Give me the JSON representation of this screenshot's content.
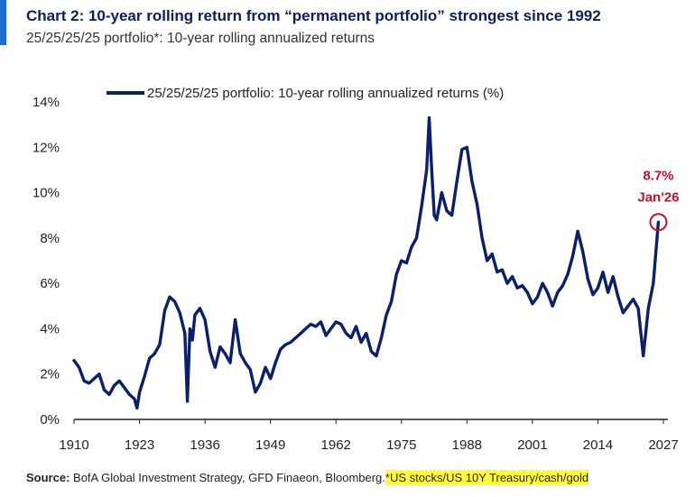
{
  "header": {
    "title": "Chart 2: 10-year rolling return from “permanent portfolio” strongest since 1992",
    "subtitle": "25/25/25/25 portfolio*: 10-year rolling annualized returns"
  },
  "footer": {
    "source_label": "Source:",
    "source_text": "BofA Global Investment Strategy, GFD Finaeon, Bloomberg.",
    "note": "*US stocks/US 10Y Treasury/cash/gold"
  },
  "colors": {
    "series": "#0b1f6b",
    "annotation": "#c8102e",
    "accent": "#1f6bd6",
    "highlight": "#ffff33"
  },
  "chart_data": {
    "type": "line",
    "title": "25/25/25/25 portfolio: 10-year rolling annualized returns",
    "xlabel": "",
    "ylabel": "",
    "xlim": [
      1910,
      2027
    ],
    "ylim": [
      0,
      14
    ],
    "xticks": [
      1910,
      1923,
      1936,
      1949,
      1962,
      1975,
      1988,
      2001,
      2014,
      2027
    ],
    "yticks": [
      0,
      2,
      4,
      6,
      8,
      10,
      12,
      14
    ],
    "ytick_labels": [
      "0%",
      "2%",
      "4%",
      "6%",
      "8%",
      "10%",
      "12%",
      "14%"
    ],
    "grid": false,
    "legend": {
      "position": "top",
      "entries": [
        "25/25/25/25 portfolio: 10-year rolling annualized returns (%)"
      ]
    },
    "annotation": {
      "value_label": "8.7%",
      "date_label": "Jan'26",
      "x": 2026.0,
      "y": 8.7
    },
    "series": [
      {
        "name": "25/25/25/25 portfolio: 10-year rolling annualized returns (%)",
        "x": [
          1910.0,
          1911.0,
          1912.0,
          1913.0,
          1914.0,
          1915.0,
          1916.0,
          1917.0,
          1918.0,
          1919.0,
          1920.0,
          1921.0,
          1922.0,
          1922.5,
          1923.0,
          1924.0,
          1925.0,
          1926.0,
          1927.0,
          1928.0,
          1929.0,
          1930.0,
          1931.0,
          1932.0,
          1932.5,
          1933.0,
          1933.5,
          1934.0,
          1935.0,
          1936.0,
          1937.0,
          1938.0,
          1939.0,
          1940.0,
          1941.0,
          1942.0,
          1943.0,
          1944.0,
          1945.0,
          1946.0,
          1947.0,
          1948.0,
          1949.0,
          1950.0,
          1951.0,
          1952.0,
          1953.0,
          1954.0,
          1955.0,
          1956.0,
          1957.0,
          1958.0,
          1959.0,
          1960.0,
          1961.0,
          1962.0,
          1963.0,
          1964.0,
          1965.0,
          1966.0,
          1967.0,
          1968.0,
          1969.0,
          1970.0,
          1971.0,
          1972.0,
          1973.0,
          1974.0,
          1975.0,
          1976.0,
          1977.0,
          1978.0,
          1979.0,
          1980.0,
          1980.5,
          1981.0,
          1981.5,
          1982.0,
          1983.0,
          1984.0,
          1985.0,
          1986.0,
          1987.0,
          1988.0,
          1989.0,
          1990.0,
          1991.0,
          1992.0,
          1993.0,
          1994.0,
          1995.0,
          1996.0,
          1997.0,
          1998.0,
          1999.0,
          2000.0,
          2001.0,
          2002.0,
          2003.0,
          2004.0,
          2005.0,
          2006.0,
          2007.0,
          2008.0,
          2009.0,
          2010.0,
          2011.0,
          2012.0,
          2013.0,
          2014.0,
          2015.0,
          2016.0,
          2017.0,
          2018.0,
          2019.0,
          2020.0,
          2021.0,
          2022.0,
          2023.0,
          2024.0,
          2025.0,
          2026.0
        ],
        "values": [
          2.6,
          2.3,
          1.7,
          1.6,
          1.8,
          2.0,
          1.3,
          1.1,
          1.5,
          1.7,
          1.4,
          1.1,
          0.9,
          0.5,
          1.2,
          1.9,
          2.7,
          2.9,
          3.3,
          4.8,
          5.4,
          5.2,
          4.7,
          3.8,
          0.8,
          4.0,
          3.5,
          4.6,
          4.9,
          4.4,
          3.0,
          2.3,
          3.2,
          2.9,
          2.5,
          4.4,
          2.9,
          2.5,
          2.2,
          1.2,
          1.6,
          2.3,
          1.8,
          2.5,
          3.1,
          3.3,
          3.4,
          3.6,
          3.8,
          4.0,
          4.2,
          4.1,
          4.3,
          3.7,
          4.0,
          4.3,
          4.2,
          3.8,
          3.6,
          4.1,
          3.4,
          3.8,
          3.0,
          2.8,
          3.6,
          4.6,
          5.2,
          6.4,
          7.0,
          6.9,
          7.6,
          8.0,
          9.4,
          11.0,
          13.3,
          11.0,
          9.0,
          8.8,
          10.0,
          9.2,
          9.0,
          10.5,
          11.9,
          12.0,
          10.5,
          9.5,
          8.0,
          7.0,
          7.3,
          6.5,
          6.6,
          6.0,
          6.3,
          5.8,
          5.9,
          5.6,
          5.1,
          5.4,
          6.0,
          5.6,
          5.0,
          5.6,
          5.9,
          6.4,
          7.2,
          8.3,
          7.4,
          6.2,
          5.5,
          5.8,
          6.5,
          5.6,
          6.3,
          5.4,
          4.7,
          5.0,
          5.3,
          4.9,
          2.8,
          4.9,
          6.0,
          8.7
        ]
      }
    ]
  }
}
